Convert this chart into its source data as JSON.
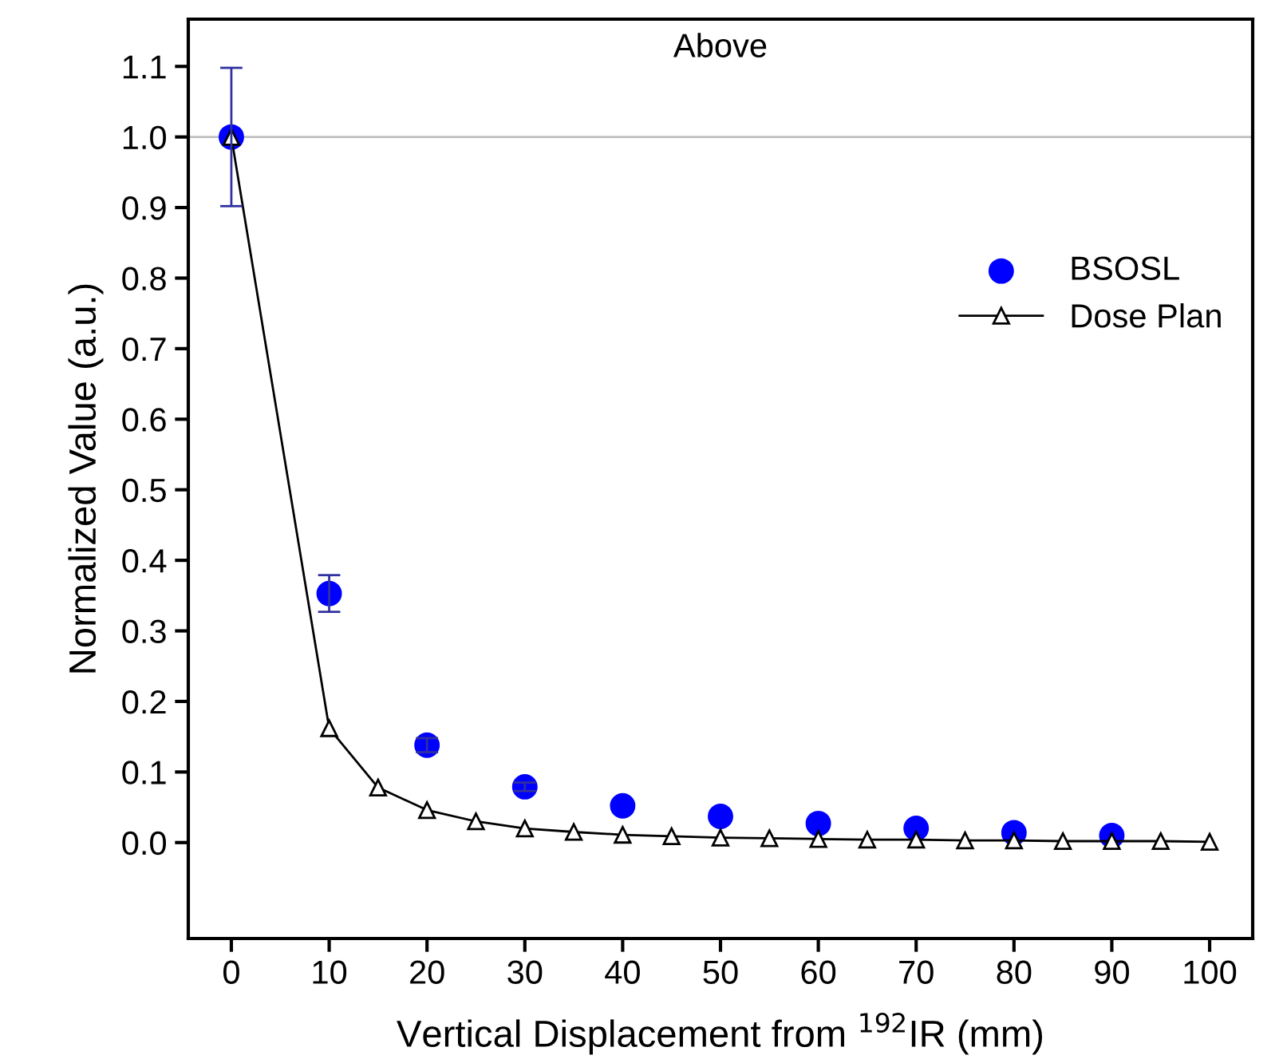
{
  "chart_data": {
    "type": "scatter",
    "xlabel": "Vertical Displacement from $^{192}$IR (mm)",
    "ylabel": "Normalized Value (a.u.)",
    "annotations": [
      "Above"
    ],
    "series": [
      {
        "name": "BSOSL",
        "color": "#0000ff",
        "marker": "circle",
        "x": [
          0,
          10,
          20,
          30,
          40,
          50,
          60,
          70,
          80,
          90
        ],
        "values": [
          1.0,
          0.353,
          0.138,
          0.079,
          0.052,
          0.037,
          0.027,
          0.02,
          0.014,
          0.01
        ],
        "errors": [
          0.098,
          0.026,
          0.01,
          0.006,
          null,
          null,
          null,
          null,
          null,
          null
        ]
      },
      {
        "name": "Dose Plan",
        "type": "line",
        "color": "#000000",
        "marker": "triangle",
        "line_style": "solid",
        "x": [
          0,
          10,
          15,
          20,
          25,
          30,
          35,
          40,
          45,
          50,
          55,
          60,
          65,
          70,
          75,
          80,
          85,
          90,
          95,
          100
        ],
        "values": [
          1.0,
          0.162,
          0.078,
          0.046,
          0.03,
          0.02,
          0.015,
          0.011,
          0.009,
          0.007,
          0.006,
          0.005,
          0.004,
          0.004,
          0.003,
          0.003,
          0.002,
          0.002,
          0.002,
          0.001
        ]
      }
    ],
    "ref_lines": [
      {
        "axis": "y",
        "value": 1.0,
        "color": "#c0c0c0"
      }
    ],
    "xlim": [
      -4.4,
      104.4
    ],
    "ylim": [
      -0.136,
      1.167
    ],
    "xticks": [
      0,
      10,
      20,
      30,
      40,
      50,
      60,
      70,
      80,
      90,
      100
    ],
    "yticks": [
      {
        "value": 0,
        "label": "0.0"
      },
      0.1,
      0.2,
      0.3,
      0.4,
      0.5,
      0.6,
      0.7,
      0.8,
      0.9,
      {
        "value": 1,
        "label": "1.0"
      },
      1.1
    ],
    "grid": false,
    "legend": "right"
  }
}
